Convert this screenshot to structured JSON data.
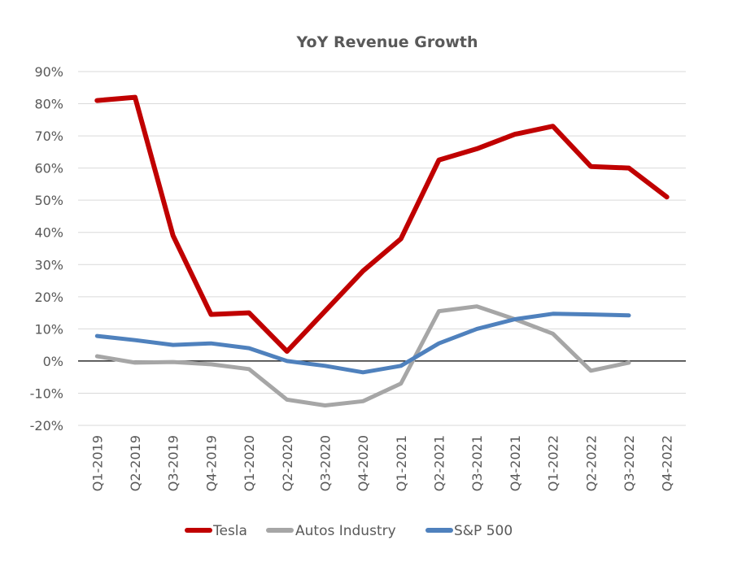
{
  "chart_data": {
    "type": "line",
    "title": "YoY Revenue Growth",
    "xlabel": "",
    "ylabel": "",
    "ylim": [
      -20,
      90
    ],
    "yticks": [
      90,
      80,
      70,
      60,
      50,
      40,
      30,
      20,
      10,
      0,
      -10,
      -20
    ],
    "ytick_labels": [
      "90%",
      "80%",
      "70%",
      "60%",
      "50%",
      "40%",
      "30%",
      "20%",
      "10%",
      "0%",
      "-10%",
      "-20%"
    ],
    "categories": [
      "Q1-2019",
      "Q2-2019",
      "Q3-2019",
      "Q4-2019",
      "Q1-2020",
      "Q2-2020",
      "Q3-2020",
      "Q4-2020",
      "Q1-2021",
      "Q2-2021",
      "Q3-2021",
      "Q4-2021",
      "Q1-2022",
      "Q2-2022",
      "Q3-2022",
      "Q4-2022"
    ],
    "grid": true,
    "legend_position": "bottom",
    "series": [
      {
        "name": "Tesla",
        "color": "#c00000",
        "values": [
          81,
          82,
          39,
          14.5,
          15,
          3,
          15.5,
          28,
          38,
          62.5,
          66,
          70.5,
          73,
          60.5,
          60,
          51
        ]
      },
      {
        "name": "Autos Industry",
        "color": "#a6a6a6",
        "values": [
          1.5,
          -0.5,
          -0.3,
          -1,
          -2.5,
          -12,
          -13.8,
          -12.5,
          -7,
          15.5,
          17,
          13,
          8.5,
          -3,
          -0.5,
          null
        ]
      },
      {
        "name": "S&P 500",
        "color": "#4f81bd",
        "values": [
          7.8,
          6.5,
          5,
          5.5,
          4,
          0,
          -1.5,
          -3.5,
          -1.5,
          5.5,
          10,
          13,
          14.7,
          14.5,
          14.2,
          null
        ]
      }
    ]
  }
}
